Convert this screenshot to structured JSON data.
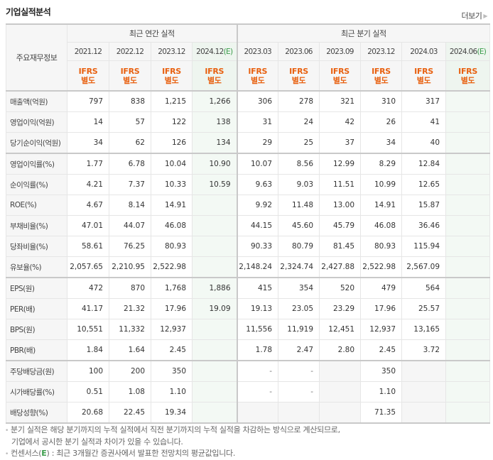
{
  "header": {
    "title": "기업실적분석",
    "more_label": "더보기",
    "more_icon": "triangle-right-icon"
  },
  "table": {
    "row_header_label": "주요재무정보",
    "groups": [
      {
        "label": "최근 연간 실적"
      },
      {
        "label": "최근 분기 실적"
      }
    ],
    "periods": [
      {
        "label": "2021.12",
        "estimate": false
      },
      {
        "label": "2022.12",
        "estimate": false
      },
      {
        "label": "2023.12",
        "estimate": false
      },
      {
        "label": "2024.12",
        "estimate": true,
        "estimate_mark": "(E)"
      },
      {
        "label": "2023.03",
        "estimate": false
      },
      {
        "label": "2023.06",
        "estimate": false
      },
      {
        "label": "2023.09",
        "estimate": false
      },
      {
        "label": "2023.12",
        "estimate": false
      },
      {
        "label": "2024.03",
        "estimate": false
      },
      {
        "label": "2024.06",
        "estimate": true,
        "estimate_mark": "(E)"
      }
    ],
    "accounting_standard": {
      "line1": "IFRS",
      "line2": "별도"
    },
    "rows": [
      {
        "label": "매출액(억원)",
        "values": [
          "797",
          "838",
          "1,215",
          "1,266",
          "306",
          "278",
          "321",
          "310",
          "317",
          ""
        ]
      },
      {
        "label": "영업이익(억원)",
        "values": [
          "14",
          "57",
          "122",
          "138",
          "31",
          "24",
          "42",
          "26",
          "41",
          ""
        ]
      },
      {
        "label": "당기순이익(억원)",
        "values": [
          "34",
          "62",
          "126",
          "134",
          "29",
          "25",
          "37",
          "34",
          "40",
          ""
        ]
      },
      {
        "label": "영업이익률(%)",
        "values": [
          "1.77",
          "6.78",
          "10.04",
          "10.90",
          "10.07",
          "8.56",
          "12.99",
          "8.29",
          "12.84",
          ""
        ]
      },
      {
        "label": "순이익률(%)",
        "values": [
          "4.21",
          "7.37",
          "10.33",
          "10.59",
          "9.63",
          "9.03",
          "11.51",
          "10.99",
          "12.65",
          ""
        ]
      },
      {
        "label": "ROE(%)",
        "values": [
          "4.67",
          "8.14",
          "14.91",
          "",
          "9.92",
          "11.48",
          "13.00",
          "14.91",
          "15.87",
          ""
        ]
      },
      {
        "label": "부채비율(%)",
        "values": [
          "47.01",
          "44.07",
          "46.08",
          "",
          "44.15",
          "45.60",
          "45.79",
          "46.08",
          "36.46",
          ""
        ]
      },
      {
        "label": "당좌비율(%)",
        "values": [
          "58.61",
          "76.25",
          "80.93",
          "",
          "90.33",
          "80.79",
          "81.45",
          "80.93",
          "115.94",
          ""
        ]
      },
      {
        "label": "유보율(%)",
        "values": [
          "2,057.65",
          "2,210.95",
          "2,522.98",
          "",
          "2,148.24",
          "2,324.74",
          "2,427.88",
          "2,522.98",
          "2,567.09",
          ""
        ]
      },
      {
        "label": "EPS(원)",
        "values": [
          "472",
          "870",
          "1,768",
          "1,886",
          "415",
          "354",
          "520",
          "479",
          "564",
          ""
        ]
      },
      {
        "label": "PER(배)",
        "values": [
          "41.17",
          "21.32",
          "17.96",
          "19.09",
          "19.13",
          "23.05",
          "23.29",
          "17.96",
          "25.57",
          ""
        ]
      },
      {
        "label": "BPS(원)",
        "values": [
          "10,551",
          "11,332",
          "12,937",
          "",
          "11,556",
          "11,919",
          "12,451",
          "12,937",
          "13,165",
          ""
        ]
      },
      {
        "label": "PBR(배)",
        "values": [
          "1.84",
          "1.64",
          "2.45",
          "",
          "1.78",
          "2.47",
          "2.80",
          "2.45",
          "3.72",
          ""
        ]
      },
      {
        "label": "주당배당금(원)",
        "values": [
          "100",
          "200",
          "350",
          "",
          "-",
          "-",
          "",
          "350",
          "",
          ""
        ]
      },
      {
        "label": "시가배당률(%)",
        "values": [
          "0.51",
          "1.08",
          "1.10",
          "",
          "-",
          "-",
          "",
          "1.10",
          "",
          ""
        ]
      },
      {
        "label": "배당성향(%)",
        "values": [
          "20.68",
          "22.45",
          "19.34",
          "",
          "",
          "",
          "",
          "71.35",
          "",
          ""
        ]
      }
    ]
  },
  "notes": {
    "line1": "분기 실적은 해당 분기까지의 누적 실적에서 직전 분기까지의 누적 실적을 차감하는 방식으로 계산되므로,",
    "line2": "기업에서 공시한 분기 실적과 차이가 있을 수 있습니다.",
    "line3_prefix": "컨센서스(",
    "line3_mark": "E",
    "line3_suffix": ") : 최근 3개월간 증권사에서 발표한 전망치의 평균값입니다."
  },
  "colors": {
    "ifrs_orange": "#e8600f",
    "estimate_green": "#3a9c4a",
    "estimate_bg": "#f3f9f4",
    "header_bg": "#f6f6f6",
    "border": "#e6e6e6"
  }
}
